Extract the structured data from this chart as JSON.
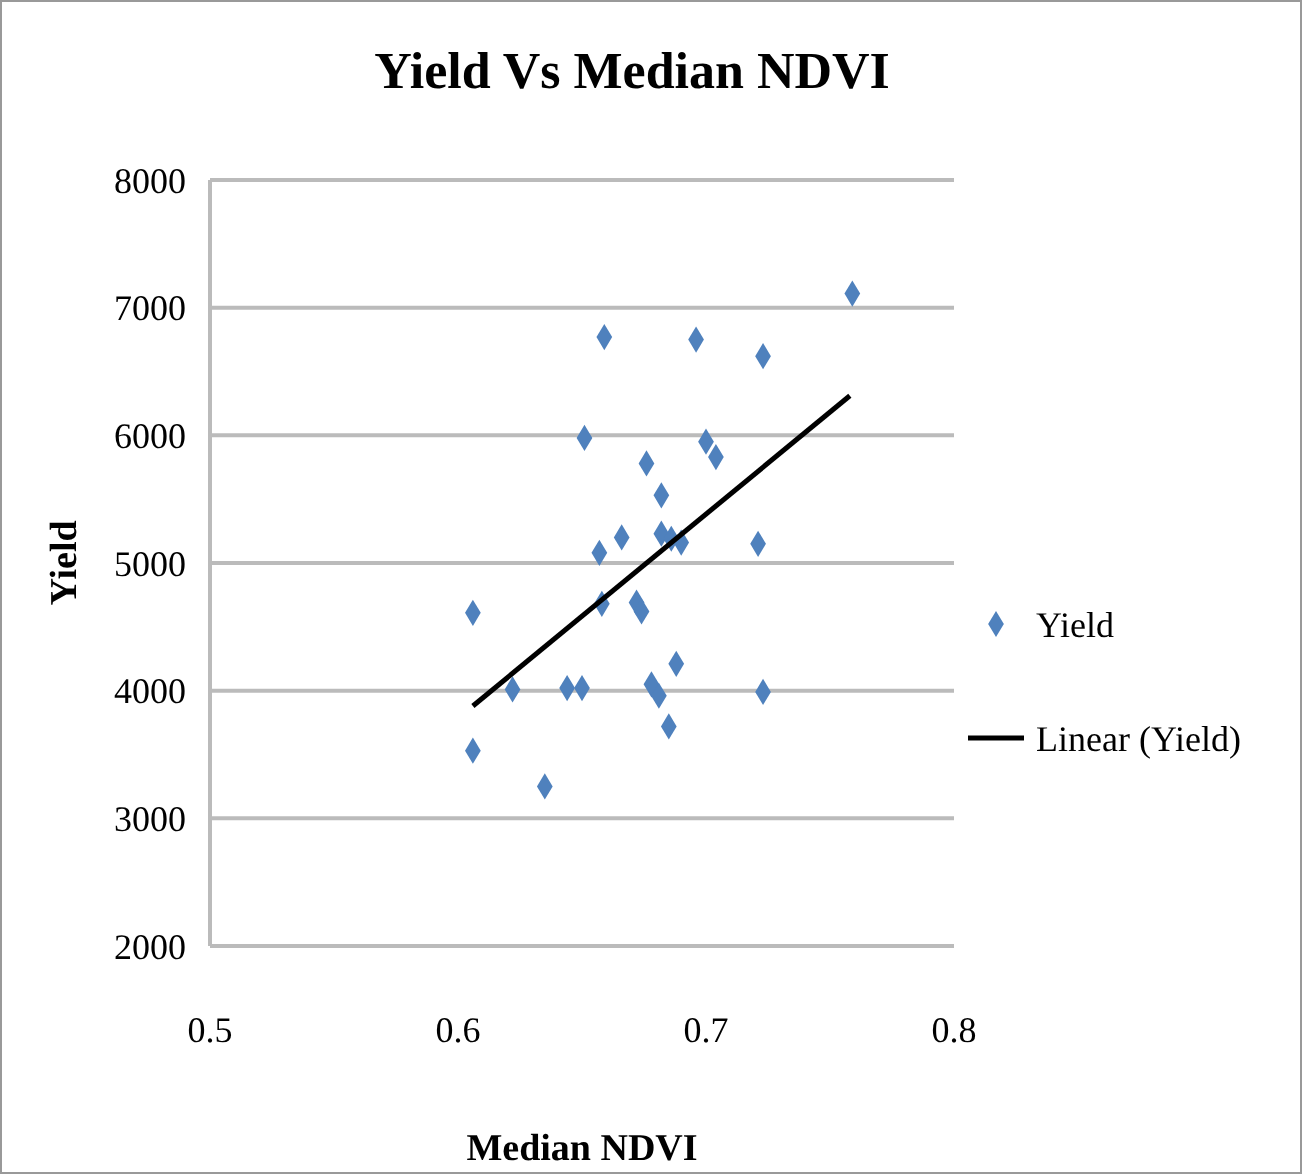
{
  "chart_data": {
    "type": "scatter",
    "title": "Yield Vs Median NDVI",
    "xlabel": "Median NDVI",
    "ylabel": "Yield",
    "xlim": [
      0.5,
      0.8
    ],
    "xticks": [
      0.5,
      0.6,
      0.7,
      0.8
    ],
    "ylim": [
      2000,
      8000
    ],
    "yticks": [
      2000,
      3000,
      4000,
      5000,
      6000,
      7000,
      8000
    ],
    "grid": "y",
    "legend": "right",
    "marker": "diamond",
    "series": [
      {
        "name": "Yield",
        "color": "#4f81bd",
        "x": [
          0.606,
          0.606,
          0.622,
          0.635,
          0.644,
          0.65,
          0.651,
          0.659,
          0.657,
          0.658,
          0.666,
          0.672,
          0.674,
          0.676,
          0.682,
          0.682,
          0.686,
          0.69,
          0.678,
          0.681,
          0.688,
          0.685,
          0.696,
          0.7,
          0.704,
          0.721,
          0.723,
          0.723,
          0.759
        ],
        "values": [
          4610,
          3530,
          4010,
          3250,
          4020,
          4020,
          5980,
          6770,
          5080,
          4680,
          5200,
          4690,
          4620,
          5780,
          5530,
          5230,
          5190,
          5160,
          4050,
          3960,
          4210,
          3720,
          6750,
          5950,
          5830,
          5150,
          6620,
          3990,
          7110
        ]
      },
      {
        "name": "Linear (Yield)",
        "type": "line",
        "color": "#000000",
        "marker": "none",
        "line_style": "solid",
        "x": [
          0.606,
          0.758
        ],
        "values": [
          3880,
          6310
        ]
      }
    ]
  }
}
